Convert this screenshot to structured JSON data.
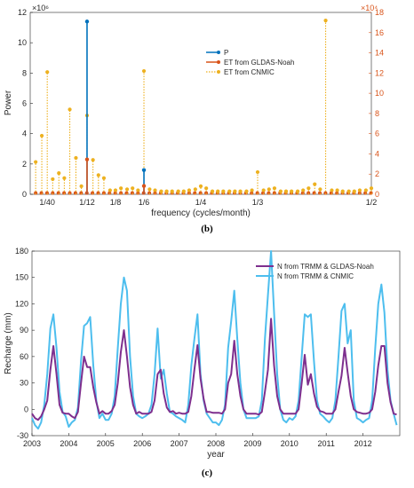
{
  "chart_data": [
    {
      "type": "stem",
      "panel_label": "(b)",
      "xlabel": "frequency (cycles/month)",
      "ylabel": "Power",
      "y_multiplier_left": "×10⁶",
      "y_multiplier_right": "×10⁴",
      "xlim": [
        0,
        0.5
      ],
      "ylim_left": [
        0,
        12
      ],
      "ylim_right": [
        0,
        18
      ],
      "yticks_left": [
        0,
        2,
        4,
        6,
        8,
        10,
        12
      ],
      "yticks_right": [
        0,
        2,
        4,
        6,
        8,
        10,
        12,
        14,
        16,
        18
      ],
      "xticks": [
        {
          "value": 0.025,
          "label": "1/40"
        },
        {
          "value": 0.0833,
          "label": "1/12"
        },
        {
          "value": 0.125,
          "label": "1/8"
        },
        {
          "value": 0.1667,
          "label": "1/6"
        },
        {
          "value": 0.25,
          "label": "1/4"
        },
        {
          "value": 0.3333,
          "label": "1/3"
        },
        {
          "value": 0.5,
          "label": "1/2"
        }
      ],
      "legend_position": "upper-center",
      "colors": {
        "P": "#0072bd",
        "GLDAS": "#d95319",
        "CNMIC": "#edb120",
        "axis_right": "#d9541a"
      },
      "series": [
        {
          "name": "P",
          "axis": "left",
          "x": [
            0.0833,
            0.1667
          ],
          "y": [
            11.4,
            1.6
          ]
        },
        {
          "name": "ET from GLDAS-Noah",
          "axis": "left",
          "x": [
            0.0833,
            0.1667
          ],
          "y": [
            2.3,
            0.55
          ]
        },
        {
          "name": "ET from CNMIC",
          "axis": "right",
          "x": [
            0.008,
            0.017,
            0.025,
            0.033,
            0.042,
            0.05,
            0.058,
            0.067,
            0.075,
            0.0833,
            0.092,
            0.1,
            0.108,
            0.117,
            0.125,
            0.133,
            0.142,
            0.15,
            0.158,
            0.1667,
            0.175,
            0.183,
            0.192,
            0.2,
            0.208,
            0.217,
            0.225,
            0.233,
            0.242,
            0.25,
            0.258,
            0.267,
            0.275,
            0.283,
            0.292,
            0.3,
            0.308,
            0.317,
            0.325,
            0.3333,
            0.342,
            0.35,
            0.358,
            0.367,
            0.375,
            0.383,
            0.392,
            0.4,
            0.408,
            0.417,
            0.425,
            0.433,
            0.442,
            0.45,
            0.458,
            0.467,
            0.475,
            0.483,
            0.492,
            0.5
          ],
          "y": [
            3.2,
            5.8,
            12.1,
            1.5,
            2.1,
            1.6,
            8.4,
            3.6,
            0.8,
            7.8,
            3.4,
            1.9,
            1.6,
            0.4,
            0.4,
            0.6,
            0.5,
            0.6,
            0.4,
            12.2,
            0.5,
            0.4,
            0.3,
            0.3,
            0.3,
            0.3,
            0.3,
            0.4,
            0.5,
            0.8,
            0.6,
            0.3,
            0.3,
            0.3,
            0.3,
            0.3,
            0.3,
            0.3,
            0.4,
            2.2,
            0.4,
            0.5,
            0.6,
            0.3,
            0.3,
            0.3,
            0.3,
            0.4,
            0.6,
            1.0,
            0.5,
            17.2,
            0.4,
            0.4,
            0.3,
            0.3,
            0.3,
            0.4,
            0.4,
            0.6
          ]
        }
      ]
    },
    {
      "type": "line",
      "panel_label": "(c)",
      "xlabel": "year",
      "ylabel": "Recharge (mm)",
      "xlim": [
        2003,
        2013
      ],
      "ylim": [
        -30,
        180
      ],
      "yticks": [
        -30,
        0,
        30,
        60,
        90,
        120,
        150,
        180
      ],
      "xticks": [
        {
          "value": 2003,
          "label": "2003"
        },
        {
          "value": 2004,
          "label": "2004"
        },
        {
          "value": 2005,
          "label": "2005"
        },
        {
          "value": 2006,
          "label": "2006"
        },
        {
          "value": 2007,
          "label": "2007"
        },
        {
          "value": 2008,
          "label": "2008"
        },
        {
          "value": 2009,
          "label": "2009"
        },
        {
          "value": 2010,
          "label": "2010"
        },
        {
          "value": 2011,
          "label": "2011"
        },
        {
          "value": 2012,
          "label": "2012"
        }
      ],
      "legend_position": "upper-right",
      "colors": {
        "GLDAS": "#7e2f8e",
        "CNMIC": "#4dbeee"
      },
      "series": [
        {
          "name": "N from TRMM & GLDAS-Noah",
          "start": 2003,
          "step": 0.0833333,
          "values": [
            -5,
            -10,
            -12,
            -8,
            0,
            10,
            45,
            72,
            40,
            5,
            -4,
            -5,
            -5,
            -8,
            -10,
            -3,
            30,
            60,
            48,
            48,
            25,
            8,
            -5,
            -2,
            -5,
            -5,
            -2,
            5,
            30,
            65,
            90,
            60,
            25,
            5,
            -5,
            -3,
            -5,
            -5,
            -5,
            -3,
            10,
            40,
            45,
            18,
            2,
            -3,
            -2,
            -5,
            -4,
            -5,
            -5,
            -3,
            15,
            45,
            73,
            35,
            12,
            -3,
            -3,
            -4,
            -4,
            -4,
            -5,
            0,
            30,
            40,
            78,
            40,
            15,
            0,
            -5,
            -5,
            -5,
            -5,
            -6,
            -3,
            20,
            45,
            103,
            50,
            15,
            0,
            -5,
            -5,
            -5,
            -5,
            -5,
            0,
            30,
            62,
            28,
            40,
            18,
            3,
            -2,
            -3,
            -5,
            -5,
            -5,
            0,
            20,
            38,
            70,
            42,
            15,
            0,
            -3,
            -4,
            -5,
            -5,
            -4,
            0,
            20,
            50,
            72,
            72,
            30,
            8,
            -5,
            -6
          ]
        },
        {
          "name": "N from TRMM & CNMIC",
          "start": 2003,
          "step": 0.0833333,
          "values": [
            -10,
            -18,
            -22,
            -15,
            5,
            40,
            92,
            108,
            70,
            20,
            -3,
            -8,
            -20,
            -15,
            -12,
            2,
            55,
            95,
            98,
            105,
            50,
            10,
            -10,
            -5,
            -12,
            -12,
            -5,
            15,
            70,
            120,
            150,
            135,
            60,
            15,
            -5,
            -8,
            -10,
            -8,
            -5,
            5,
            40,
            92,
            35,
            45,
            18,
            -3,
            -5,
            -8,
            -10,
            -12,
            -15,
            5,
            50,
            80,
            108,
            40,
            10,
            -5,
            -10,
            -15,
            -15,
            -18,
            -12,
            5,
            70,
            100,
            135,
            80,
            30,
            0,
            -10,
            -10,
            -10,
            -10,
            -8,
            10,
            80,
            130,
            180,
            110,
            40,
            0,
            -12,
            -15,
            -10,
            -12,
            -8,
            10,
            60,
            108,
            105,
            108,
            55,
            10,
            -5,
            -8,
            -12,
            -15,
            -10,
            10,
            60,
            112,
            120,
            75,
            90,
            10,
            -10,
            -12,
            -15,
            -12,
            -10,
            10,
            70,
            120,
            142,
            110,
            45,
            10,
            -5,
            -18
          ]
        }
      ]
    }
  ]
}
